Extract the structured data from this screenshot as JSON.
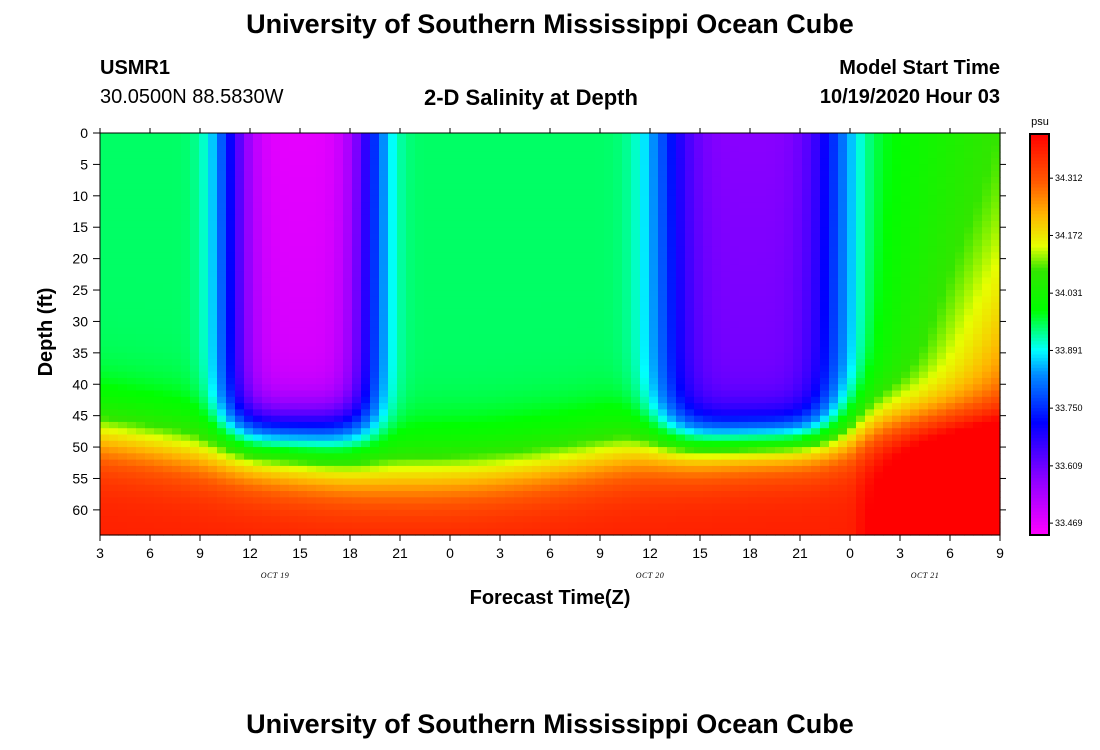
{
  "header": {
    "title_top": "University of Southern Mississippi Ocean Cube",
    "title_bottom": "University of Southern Mississippi Ocean Cube",
    "station_id": "USMR1",
    "coordinates": "30.0500N 88.5830W",
    "plot_title": "2-D Salinity at Depth",
    "model_start_label": "Model Start Time",
    "model_start_value": "10/19/2020 Hour 03"
  },
  "chart_data": {
    "type": "heatmap",
    "title": "2-D Salinity at Depth",
    "xlabel": "Forecast Time(Z)",
    "ylabel": "Depth (ft)",
    "x_ticks": [
      "3",
      "6",
      "9",
      "12",
      "15",
      "18",
      "21",
      "0",
      "3",
      "6",
      "9",
      "12",
      "15",
      "18",
      "21",
      "0",
      "3",
      "6",
      "9"
    ],
    "x_hours_from_start": [
      0,
      3,
      6,
      9,
      12,
      15,
      18,
      21,
      24,
      27,
      30,
      33,
      36,
      39,
      42,
      45,
      48,
      51,
      54
    ],
    "date_labels": [
      {
        "text": "OCT 19",
        "hour": 10.5
      },
      {
        "text": "OCT 20",
        "hour": 33
      },
      {
        "text": "OCT 21",
        "hour": 49.5
      }
    ],
    "y_ticks": [
      0,
      5,
      10,
      15,
      20,
      25,
      30,
      35,
      40,
      45,
      50,
      55,
      60
    ],
    "ylim": [
      0,
      64
    ],
    "xlim_hours": [
      0,
      54
    ],
    "y_inverted": true,
    "colorbar": {
      "unit": "psu",
      "labels": [
        "34.312",
        "34.172",
        "34.031",
        "33.891",
        "33.750",
        "33.609",
        "33.469"
      ],
      "label_values": [
        34.312,
        34.172,
        34.031,
        33.891,
        33.75,
        33.609,
        33.469
      ],
      "range": [
        33.44,
        34.42
      ]
    },
    "features": [
      {
        "type": "low",
        "center_hour": 12,
        "half_width": 4.6,
        "bottom_depth": 47,
        "core_value": 33.47
      },
      {
        "type": "low",
        "center_hour": 39,
        "half_width": 5.6,
        "bottom_depth": 48,
        "core_value": 33.58
      }
    ],
    "background_surface": 33.95,
    "background_deep": 34.38
  }
}
